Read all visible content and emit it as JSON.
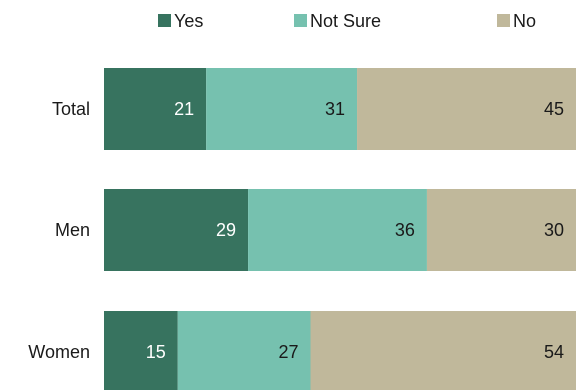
{
  "chart_data": {
    "type": "bar",
    "orientation": "horizontal",
    "stacked": true,
    "title": "",
    "xlabel": "",
    "ylabel": "",
    "categories": [
      "Total",
      "Men",
      "Women"
    ],
    "series": [
      {
        "name": "Yes",
        "values": [
          21,
          29,
          15
        ],
        "color": "#37735f",
        "label_color": "#ffffff"
      },
      {
        "name": "Not Sure",
        "values": [
          31,
          36,
          27
        ],
        "color": "#76c1af",
        "label_color": "#1a1a1a"
      },
      {
        "name": "No",
        "values": [
          45,
          30,
          54
        ],
        "color": "#c0b89b",
        "label_color": "#1a1a1a"
      }
    ],
    "legend_position": "top",
    "grid": false
  }
}
